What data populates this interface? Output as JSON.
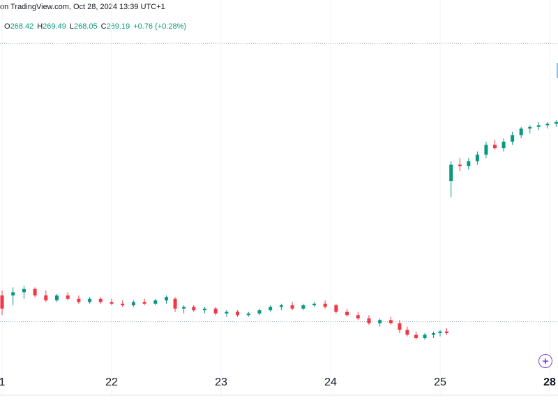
{
  "header": {
    "source_text": "on TradingView.com, Oct 28, 2024 13:39 UTC+1"
  },
  "ohlc": {
    "o_label": "O",
    "o_value": "268.42",
    "h_label": "H",
    "h_value": "269.49",
    "l_label": "L",
    "l_value": "268.05",
    "c_label": "C",
    "c_value": "269.19",
    "change": "+0.76 (+0.28%)"
  },
  "colors": {
    "up": "#089981",
    "down": "#f23645",
    "grid": "#f0f3fa",
    "dotted": "#9aa6b2",
    "text": "#131722"
  },
  "icons": {
    "add_button": "plus-circle-icon"
  },
  "chart_data": {
    "type": "candlestick",
    "x_ticks": [
      "1",
      "22",
      "23",
      "24",
      "25",
      "28"
    ],
    "last_tick_bold": "28",
    "y_range": [
      259.0,
      270.2
    ],
    "reference_levels": [
      269.3,
      260.8
    ],
    "candles": [
      [
        0.0,
        261.6,
        261.75,
        261.0,
        261.2
      ],
      [
        0.1,
        261.6,
        261.85,
        261.3,
        261.7
      ],
      [
        0.2,
        261.7,
        261.9,
        261.5,
        261.8
      ],
      [
        0.3,
        261.8,
        261.85,
        261.55,
        261.6
      ],
      [
        0.4,
        261.6,
        261.75,
        261.4,
        261.45
      ],
      [
        0.5,
        261.45,
        261.65,
        261.4,
        261.6
      ],
      [
        0.6,
        261.6,
        261.7,
        261.45,
        261.5
      ],
      [
        0.7,
        261.5,
        261.6,
        261.35,
        261.4
      ],
      [
        0.8,
        261.4,
        261.55,
        261.35,
        261.5
      ],
      [
        0.9,
        261.5,
        261.55,
        261.35,
        261.4
      ],
      [
        1.0,
        261.4,
        261.5,
        261.3,
        261.35
      ],
      [
        1.1,
        261.35,
        261.45,
        261.25,
        261.3
      ],
      [
        1.2,
        261.3,
        261.45,
        261.25,
        261.4
      ],
      [
        1.3,
        261.4,
        261.5,
        261.3,
        261.35
      ],
      [
        1.4,
        261.35,
        261.5,
        261.3,
        261.45
      ],
      [
        1.5,
        261.45,
        261.6,
        261.35,
        261.55
      ],
      [
        1.58,
        261.5,
        261.55,
        261.1,
        261.2
      ],
      [
        1.66,
        261.2,
        261.3,
        261.05,
        261.25
      ],
      [
        1.75,
        261.25,
        261.3,
        261.1,
        261.15
      ],
      [
        1.85,
        261.15,
        261.25,
        261.05,
        261.2
      ],
      [
        1.95,
        261.2,
        261.25,
        261.0,
        261.05
      ],
      [
        2.05,
        261.05,
        261.15,
        260.95,
        261.1
      ],
      [
        2.15,
        261.1,
        261.15,
        260.95,
        261.0
      ],
      [
        2.25,
        261.0,
        261.1,
        260.95,
        261.05
      ],
      [
        2.35,
        261.05,
        261.2,
        261.0,
        261.15
      ],
      [
        2.45,
        261.15,
        261.3,
        261.1,
        261.25
      ],
      [
        2.55,
        261.25,
        261.35,
        261.15,
        261.3
      ],
      [
        2.65,
        261.3,
        261.4,
        261.15,
        261.2
      ],
      [
        2.75,
        261.2,
        261.35,
        261.15,
        261.3
      ],
      [
        2.85,
        261.3,
        261.4,
        261.25,
        261.35
      ],
      [
        2.95,
        261.35,
        261.45,
        261.2,
        261.25
      ],
      [
        3.05,
        261.3,
        261.35,
        261.05,
        261.1
      ],
      [
        3.15,
        261.1,
        261.2,
        260.95,
        261.0
      ],
      [
        3.25,
        261.0,
        261.1,
        260.85,
        260.9
      ],
      [
        3.35,
        260.9,
        261.0,
        260.7,
        260.75
      ],
      [
        3.45,
        260.75,
        260.9,
        260.65,
        260.85
      ],
      [
        3.55,
        260.85,
        260.95,
        260.7,
        260.75
      ],
      [
        3.63,
        260.75,
        260.85,
        260.45,
        260.55
      ],
      [
        3.7,
        260.55,
        260.65,
        260.35,
        260.4
      ],
      [
        3.78,
        260.4,
        260.5,
        260.25,
        260.3
      ],
      [
        3.86,
        260.3,
        260.45,
        260.25,
        260.4
      ],
      [
        3.94,
        260.4,
        260.5,
        260.3,
        260.45
      ],
      [
        4.0,
        260.45,
        260.55,
        260.35,
        260.5
      ],
      [
        4.06,
        260.5,
        260.6,
        260.4,
        260.45
      ],
      [
        4.1,
        265.1,
        265.7,
        264.6,
        265.6
      ],
      [
        4.18,
        265.6,
        265.8,
        265.4,
        265.55
      ],
      [
        4.26,
        265.55,
        265.8,
        265.45,
        265.7
      ],
      [
        4.34,
        265.7,
        266.0,
        265.6,
        265.9
      ],
      [
        4.42,
        265.9,
        266.3,
        265.8,
        266.2
      ],
      [
        4.5,
        266.2,
        266.35,
        266.05,
        266.1
      ],
      [
        4.58,
        266.1,
        266.4,
        266.0,
        266.3
      ],
      [
        4.66,
        266.3,
        266.6,
        266.2,
        266.5
      ],
      [
        4.74,
        266.5,
        266.75,
        266.4,
        266.7
      ],
      [
        4.82,
        266.7,
        266.8,
        266.55,
        266.75
      ],
      [
        4.9,
        266.75,
        266.9,
        266.65,
        266.8
      ],
      [
        4.98,
        266.8,
        266.9,
        266.7,
        266.85
      ],
      [
        5.06,
        266.85,
        266.95,
        266.75,
        266.9
      ],
      [
        5.14,
        266.9,
        267.05,
        266.8,
        267.0
      ],
      [
        5.22,
        267.0,
        267.1,
        266.85,
        266.95
      ],
      [
        5.3,
        266.95,
        267.3,
        266.9,
        267.2
      ],
      [
        5.35,
        266.7,
        268.4,
        266.6,
        268.3
      ],
      [
        5.4,
        268.3,
        269.4,
        268.2,
        269.3
      ],
      [
        5.45,
        269.3,
        269.4,
        268.5,
        268.7
      ],
      [
        5.5,
        268.7,
        269.1,
        268.0,
        268.3
      ],
      [
        5.55,
        268.3,
        268.9,
        267.8,
        268.7
      ],
      [
        5.62,
        268.7,
        268.95,
        268.4,
        268.85
      ],
      [
        5.7,
        268.85,
        269.0,
        268.7,
        268.95
      ],
      [
        5.78,
        268.95,
        269.1,
        268.8,
        269.0
      ],
      [
        5.86,
        269.0,
        269.35,
        268.9,
        269.25
      ],
      [
        5.94,
        269.25,
        269.4,
        269.05,
        269.15
      ],
      [
        6.02,
        269.15,
        269.25,
        268.85,
        268.9
      ],
      [
        6.1,
        268.9,
        269.05,
        268.7,
        268.8
      ],
      [
        6.18,
        268.8,
        268.95,
        268.6,
        268.85
      ],
      [
        6.26,
        268.85,
        268.95,
        268.7,
        268.8
      ],
      [
        6.34,
        268.8,
        269.0,
        268.75,
        268.95
      ],
      [
        6.42,
        268.95,
        269.15,
        268.9,
        269.1
      ],
      [
        6.5,
        269.1,
        269.3,
        269.05,
        269.25
      ]
    ]
  }
}
